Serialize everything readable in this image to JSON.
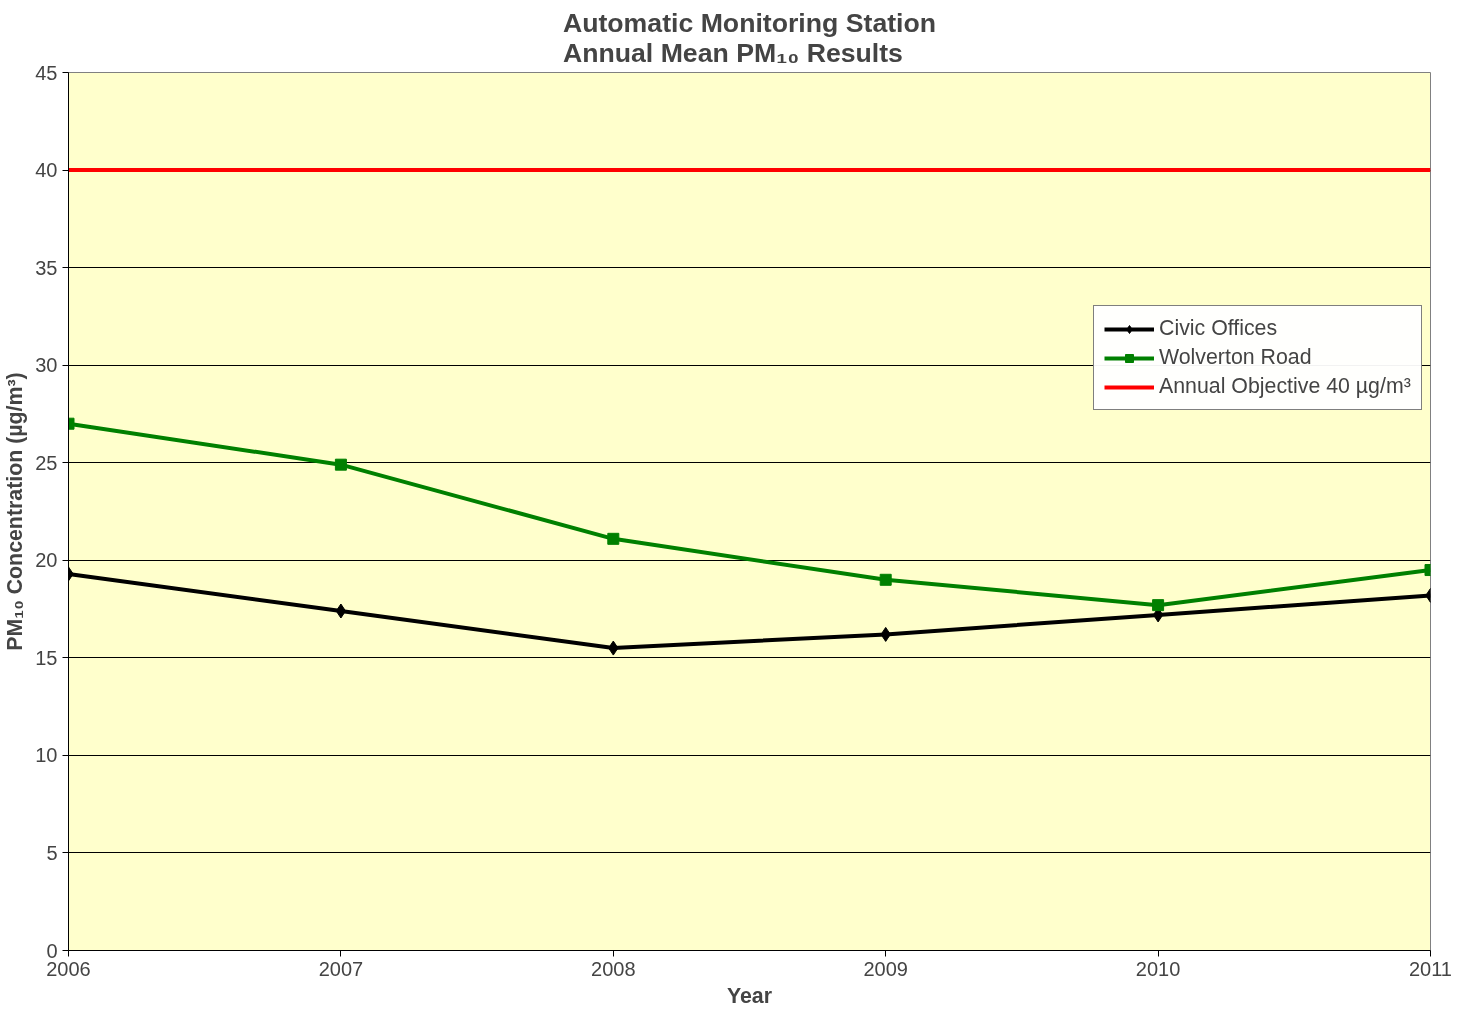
{
  "chart_data": {
    "type": "line",
    "title": "Automatic Monitoring Station\nAnnual Mean PM₁₀ Results",
    "xlabel": "Year",
    "ylabel": "PM₁₀ Concentration (µg/m³)",
    "x": [
      2006,
      2007,
      2008,
      2009,
      2010,
      2011
    ],
    "series": [
      {
        "name": "Civic Offices",
        "color": "#000000",
        "marker": "diamond",
        "values": [
          19.3,
          17.4,
          15.5,
          16.2,
          17.2,
          18.2
        ]
      },
      {
        "name": "Wolverton Road",
        "color": "#008000",
        "marker": "square",
        "values": [
          27.0,
          24.9,
          21.1,
          19.0,
          17.7,
          19.5
        ]
      },
      {
        "name": "Annual Objective 40 µg/m³",
        "color": "#ff0000",
        "marker": "none",
        "values": [
          40,
          40,
          40,
          40,
          40,
          40
        ]
      }
    ],
    "xlim": [
      2006,
      2011
    ],
    "xticks": [
      2006,
      2007,
      2008,
      2009,
      2010,
      2011
    ],
    "ylim": [
      0,
      45
    ],
    "yticks": [
      0,
      5,
      10,
      15,
      20,
      25,
      30,
      35,
      40,
      45
    ],
    "grid": "y",
    "legend": "right",
    "line_style": "solid"
  }
}
